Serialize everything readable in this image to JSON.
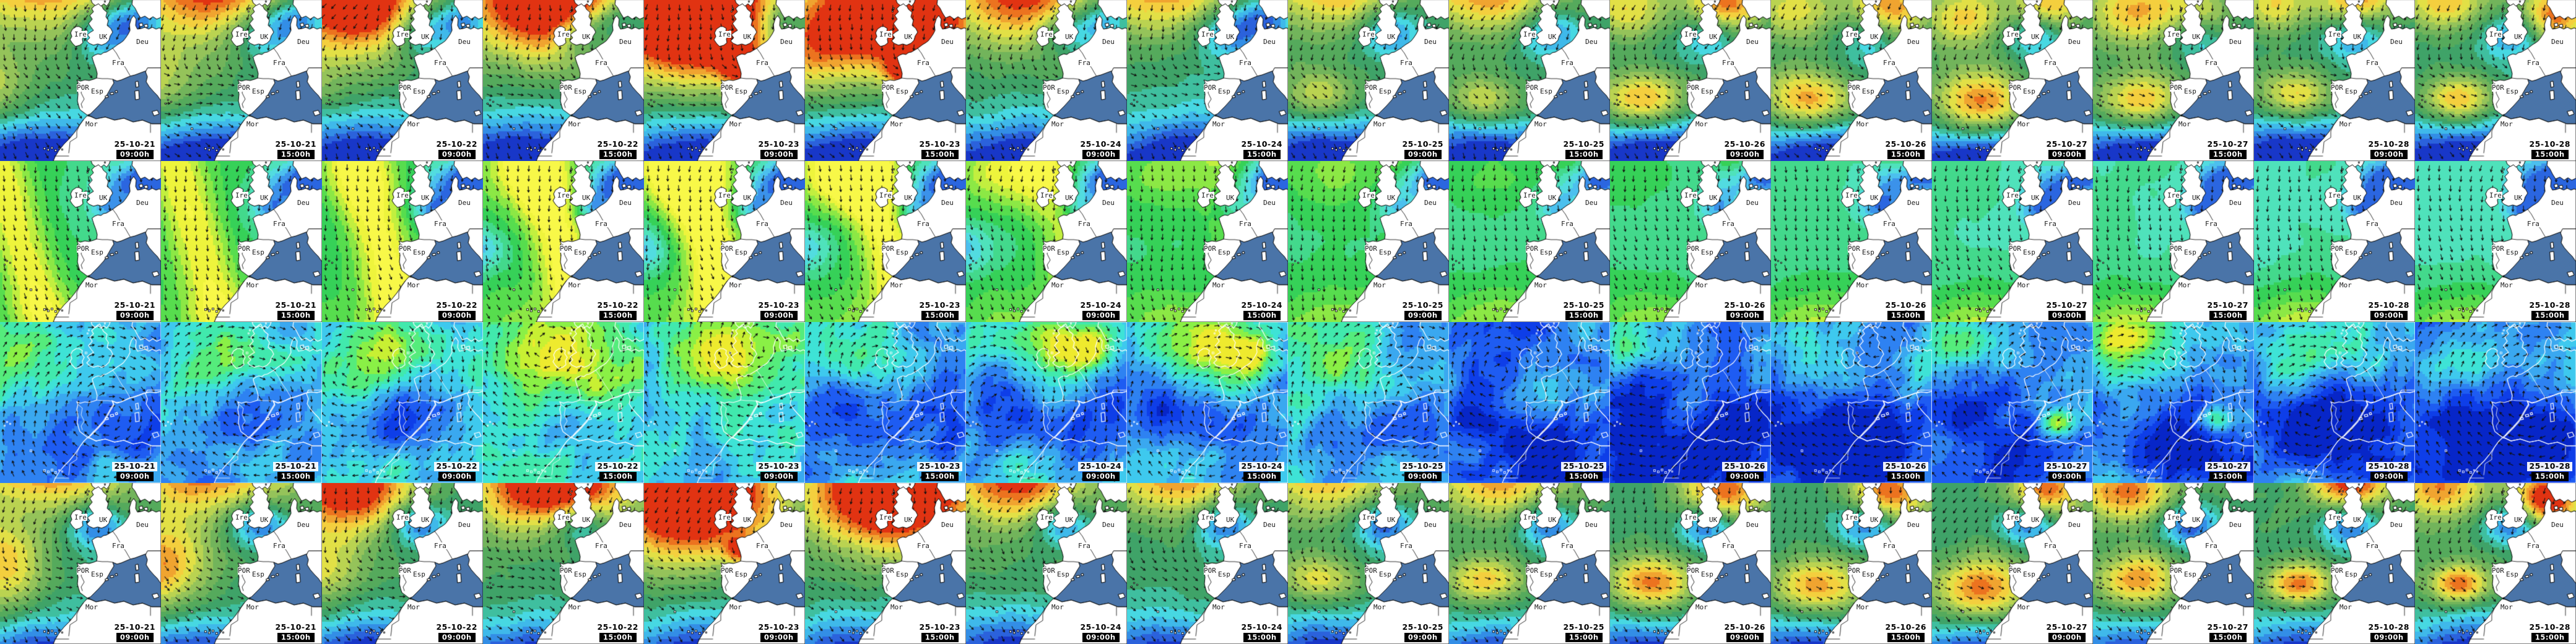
{
  "grid": {
    "columns": [
      {
        "date": "25-10-21",
        "time": "09:00h"
      },
      {
        "date": "25-10-21",
        "time": "15:00h"
      },
      {
        "date": "25-10-22",
        "time": "09:00h"
      },
      {
        "date": "25-10-22",
        "time": "15:00h"
      },
      {
        "date": "25-10-23",
        "time": "09:00h"
      },
      {
        "date": "25-10-23",
        "time": "15:00h"
      },
      {
        "date": "25-10-24",
        "time": "09:00h"
      },
      {
        "date": "25-10-24",
        "time": "15:00h"
      },
      {
        "date": "25-10-25",
        "time": "09:00h"
      },
      {
        "date": "25-10-25",
        "time": "15:00h"
      },
      {
        "date": "25-10-26",
        "time": "09:00h"
      },
      {
        "date": "25-10-26",
        "time": "15:00h"
      },
      {
        "date": "25-10-27",
        "time": "09:00h"
      },
      {
        "date": "25-10-27",
        "time": "15:00h"
      },
      {
        "date": "25-10-28",
        "time": "09:00h"
      },
      {
        "date": "25-10-28",
        "time": "15:00h"
      }
    ],
    "row_count": 4
  },
  "map_labels": {
    "ireland": "Ire",
    "uk": "UK",
    "germany": "Deu",
    "france": "Fra",
    "spain": "Esp",
    "portugal": "POR",
    "morocco": "Mor"
  },
  "colors": {
    "land": "#ffffff",
    "coastline": "#000000",
    "coastline_wind": "#ffffff",
    "mediterranean": "#4a74a8",
    "arrow": "#101010",
    "date_text": "#000000",
    "date_bg": "#ffffff",
    "time_text": "#ffffff",
    "time_bg": "#000000",
    "palettes": {
      "wave": [
        "#1837c8",
        "#2b62dc",
        "#338ee6",
        "#3fb9ea",
        "#47d8e2",
        "#3fbf9f",
        "#3fa368",
        "#55aa5c",
        "#72b45b",
        "#95c35a",
        "#bad351",
        "#e2e046",
        "#f4cf3e",
        "#f0a430",
        "#ec731f",
        "#e13312"
      ],
      "period": [
        "#2b66e0",
        "#3b92ea",
        "#4cc0ee",
        "#52dce0",
        "#4fe2bb",
        "#43d98c",
        "#36d158",
        "#57dd4e",
        "#8ce845",
        "#c2ef3f",
        "#eef43c",
        "#f8f848"
      ],
      "wind": [
        "#0726c8",
        "#0e3ee8",
        "#1e5cf2",
        "#2e82f2",
        "#3aa8f0",
        "#3ec9ee",
        "#3ee3d6",
        "#41e9ad",
        "#55ec7c",
        "#8af046",
        "#c8f033",
        "#eeea2e"
      ]
    }
  }
}
